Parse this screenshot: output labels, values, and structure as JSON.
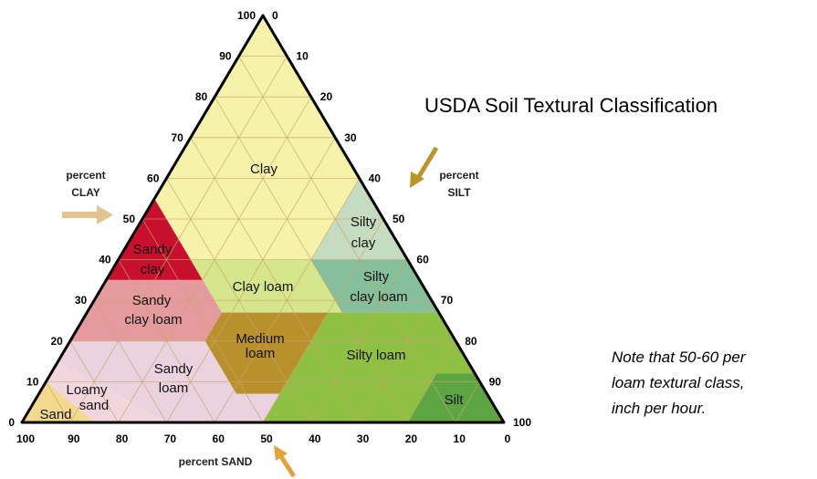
{
  "title": "USDA Soil Textural Classification",
  "axes": {
    "clay": {
      "label_lines": [
        "percent",
        "CLAY"
      ],
      "ticks": [
        0,
        10,
        20,
        30,
        40,
        50,
        60,
        70,
        80,
        90,
        100
      ]
    },
    "silt": {
      "label_lines": [
        "percent",
        "SILT"
      ],
      "ticks": [
        0,
        10,
        20,
        30,
        40,
        50,
        60,
        70,
        80,
        90,
        100
      ]
    },
    "sand": {
      "label": "percent SAND",
      "ticks": [
        100,
        90,
        80,
        70,
        60,
        50,
        40,
        30,
        20,
        10,
        0
      ]
    }
  },
  "regions": [
    {
      "label_lines": [
        "Clay"
      ],
      "color": "#f6f2a9",
      "vertices": [
        [
          100,
          0
        ],
        [
          55,
          45
        ],
        [
          40,
          45
        ],
        [
          40,
          20
        ],
        [
          60,
          0
        ]
      ]
    },
    {
      "label_lines": [
        "Sandy",
        "clay"
      ],
      "color": "#c8102e",
      "vertices": [
        [
          55,
          45
        ],
        [
          35,
          65
        ],
        [
          35,
          45
        ]
      ]
    },
    {
      "label_lines": [
        "Silty",
        "clay"
      ],
      "color": "#c5dcc0",
      "vertices": [
        [
          60,
          0
        ],
        [
          40,
          20
        ],
        [
          40,
          0
        ]
      ]
    },
    {
      "label_lines": [
        "Clay loam"
      ],
      "color": "#d6e68c",
      "vertices": [
        [
          40,
          45
        ],
        [
          40,
          20
        ],
        [
          27,
          20
        ],
        [
          27,
          45
        ]
      ]
    },
    {
      "label_lines": [
        "Silty",
        "clay loam"
      ],
      "color": "#86bf9c",
      "vertices": [
        [
          40,
          20
        ],
        [
          27,
          20
        ],
        [
          27,
          0
        ],
        [
          40,
          0
        ]
      ]
    },
    {
      "label_lines": [
        "Sandy",
        "clay loam"
      ],
      "color": "#e59a9e",
      "vertices": [
        [
          35,
          45
        ],
        [
          35,
          65
        ],
        [
          20,
          80
        ],
        [
          20,
          52
        ],
        [
          27,
          45
        ]
      ]
    },
    {
      "label_lines": [
        "Medium",
        "loam"
      ],
      "color": "#b8902c",
      "vertices": [
        [
          27,
          45
        ],
        [
          27,
          23
        ],
        [
          7,
          43
        ],
        [
          7,
          52
        ],
        [
          20,
          52
        ]
      ]
    },
    {
      "label_lines": [
        "Silty loam"
      ],
      "color": "#8fc043",
      "vertices": [
        [
          27,
          23
        ],
        [
          27,
          0
        ],
        [
          12,
          0
        ],
        [
          12,
          8
        ],
        [
          0,
          20
        ],
        [
          0,
          50
        ],
        [
          7,
          43
        ]
      ]
    },
    {
      "label_lines": [
        "Silt"
      ],
      "color": "#5ca542",
      "vertices": [
        [
          12,
          8
        ],
        [
          12,
          0
        ],
        [
          0,
          0
        ],
        [
          0,
          20
        ]
      ]
    },
    {
      "label_lines": [
        "Sandy",
        "loam"
      ],
      "color": "#ead2df",
      "vertices": [
        [
          20,
          80
        ],
        [
          20,
          52
        ],
        [
          7,
          52
        ],
        [
          7,
          43
        ],
        [
          0,
          50
        ],
        [
          0,
          70
        ],
        [
          15,
          85
        ]
      ]
    },
    {
      "label_lines": [
        "Loamy",
        "sand"
      ],
      "color": "#f1d6de",
      "vertices": [
        [
          0,
          85
        ],
        [
          0,
          70
        ],
        [
          15,
          85
        ],
        [
          10,
          90
        ]
      ]
    },
    {
      "label_lines": [
        "Sand"
      ],
      "color": "#f2d98e",
      "vertices": [
        [
          0,
          100
        ],
        [
          0,
          85
        ],
        [
          10,
          90
        ]
      ]
    }
  ],
  "note_lines": [
    "Note that 50-60 per",
    "loam textural class,",
    "inch per hour."
  ]
}
